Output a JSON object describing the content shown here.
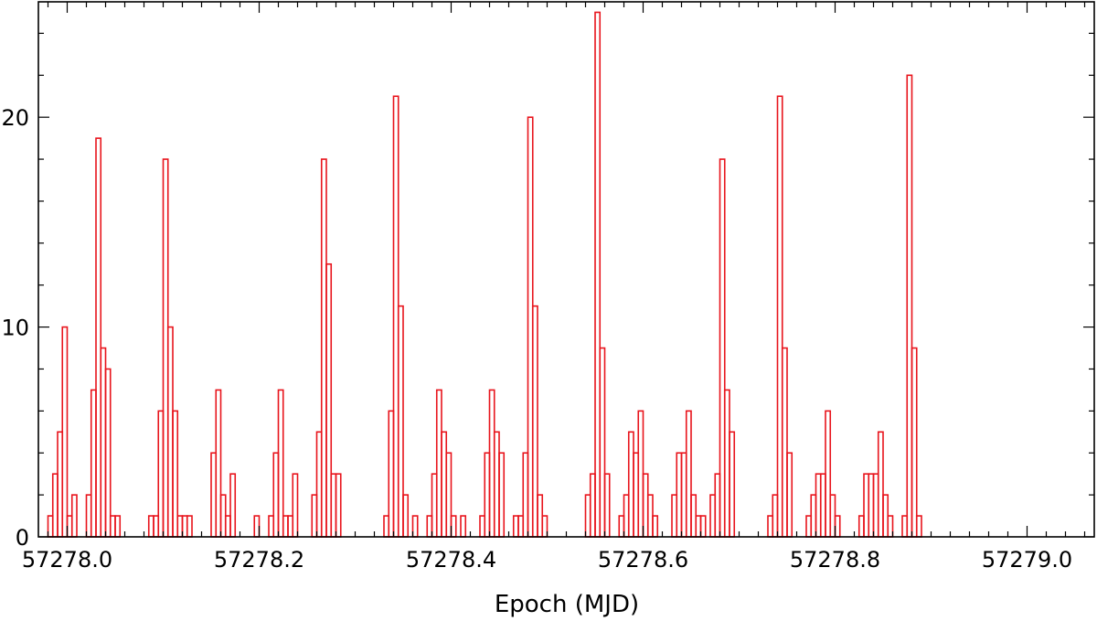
{
  "chart_data": {
    "type": "bar",
    "style": "histogram-outline",
    "title": "",
    "xlabel": "Epoch (MJD)",
    "ylabel": "",
    "xlim": [
      57277.97,
      57279.07
    ],
    "ylim": [
      0,
      25.5
    ],
    "bin_width": 0.005,
    "bar_color": "#e8141c",
    "grid": false,
    "legend": "none",
    "x_ticks": [
      {
        "value": 57278.0,
        "label": "57278.0"
      },
      {
        "value": 57278.2,
        "label": "57278.2"
      },
      {
        "value": 57278.4,
        "label": "57278.4"
      },
      {
        "value": 57278.6,
        "label": "57278.6"
      },
      {
        "value": 57278.8,
        "label": "57278.8"
      },
      {
        "value": 57279.0,
        "label": "57279.0"
      }
    ],
    "y_ticks": [
      {
        "value": 0,
        "label": "0"
      },
      {
        "value": 10,
        "label": "10"
      },
      {
        "value": 20,
        "label": "20"
      }
    ],
    "bins": [
      {
        "x": 57277.9825,
        "count": 1
      },
      {
        "x": 57277.9875,
        "count": 3
      },
      {
        "x": 57277.9925,
        "count": 5
      },
      {
        "x": 57277.9975,
        "count": 10
      },
      {
        "x": 57278.0025,
        "count": 1
      },
      {
        "x": 57278.0075,
        "count": 2
      },
      {
        "x": 57278.0225,
        "count": 2
      },
      {
        "x": 57278.0275,
        "count": 7
      },
      {
        "x": 57278.0325,
        "count": 19
      },
      {
        "x": 57278.0375,
        "count": 9
      },
      {
        "x": 57278.0425,
        "count": 8
      },
      {
        "x": 57278.0475,
        "count": 1
      },
      {
        "x": 57278.0525,
        "count": 1
      },
      {
        "x": 57278.0875,
        "count": 1
      },
      {
        "x": 57278.0925,
        "count": 1
      },
      {
        "x": 57278.0975,
        "count": 6
      },
      {
        "x": 57278.1025,
        "count": 18
      },
      {
        "x": 57278.1075,
        "count": 10
      },
      {
        "x": 57278.1125,
        "count": 6
      },
      {
        "x": 57278.1175,
        "count": 1
      },
      {
        "x": 57278.1225,
        "count": 1
      },
      {
        "x": 57278.1275,
        "count": 1
      },
      {
        "x": 57278.1525,
        "count": 4
      },
      {
        "x": 57278.1575,
        "count": 7
      },
      {
        "x": 57278.1625,
        "count": 2
      },
      {
        "x": 57278.1675,
        "count": 1
      },
      {
        "x": 57278.1725,
        "count": 3
      },
      {
        "x": 57278.1975,
        "count": 1
      },
      {
        "x": 57278.2125,
        "count": 1
      },
      {
        "x": 57278.2175,
        "count": 4
      },
      {
        "x": 57278.2225,
        "count": 7
      },
      {
        "x": 57278.2275,
        "count": 1
      },
      {
        "x": 57278.2325,
        "count": 1
      },
      {
        "x": 57278.2375,
        "count": 3
      },
      {
        "x": 57278.2575,
        "count": 2
      },
      {
        "x": 57278.2625,
        "count": 5
      },
      {
        "x": 57278.2675,
        "count": 18
      },
      {
        "x": 57278.2725,
        "count": 13
      },
      {
        "x": 57278.2775,
        "count": 3
      },
      {
        "x": 57278.2825,
        "count": 3
      },
      {
        "x": 57278.3325,
        "count": 1
      },
      {
        "x": 57278.3375,
        "count": 6
      },
      {
        "x": 57278.3425,
        "count": 21
      },
      {
        "x": 57278.3475,
        "count": 11
      },
      {
        "x": 57278.3525,
        "count": 2
      },
      {
        "x": 57278.3625,
        "count": 1
      },
      {
        "x": 57278.3775,
        "count": 1
      },
      {
        "x": 57278.3825,
        "count": 3
      },
      {
        "x": 57278.3875,
        "count": 7
      },
      {
        "x": 57278.3925,
        "count": 5
      },
      {
        "x": 57278.3975,
        "count": 4
      },
      {
        "x": 57278.4025,
        "count": 1
      },
      {
        "x": 57278.4125,
        "count": 1
      },
      {
        "x": 57278.4325,
        "count": 1
      },
      {
        "x": 57278.4375,
        "count": 4
      },
      {
        "x": 57278.4425,
        "count": 7
      },
      {
        "x": 57278.4475,
        "count": 5
      },
      {
        "x": 57278.4525,
        "count": 4
      },
      {
        "x": 57278.4675,
        "count": 1
      },
      {
        "x": 57278.4725,
        "count": 1
      },
      {
        "x": 57278.4775,
        "count": 4
      },
      {
        "x": 57278.4825,
        "count": 20
      },
      {
        "x": 57278.4875,
        "count": 11
      },
      {
        "x": 57278.4925,
        "count": 2
      },
      {
        "x": 57278.4975,
        "count": 1
      },
      {
        "x": 57278.5425,
        "count": 2
      },
      {
        "x": 57278.5475,
        "count": 3
      },
      {
        "x": 57278.5525,
        "count": 25
      },
      {
        "x": 57278.5575,
        "count": 9
      },
      {
        "x": 57278.5625,
        "count": 3
      },
      {
        "x": 57278.5775,
        "count": 1
      },
      {
        "x": 57278.5825,
        "count": 2
      },
      {
        "x": 57278.5875,
        "count": 5
      },
      {
        "x": 57278.5925,
        "count": 4
      },
      {
        "x": 57278.5975,
        "count": 6
      },
      {
        "x": 57278.6025,
        "count": 3
      },
      {
        "x": 57278.6075,
        "count": 2
      },
      {
        "x": 57278.6125,
        "count": 1
      },
      {
        "x": 57278.6325,
        "count": 2
      },
      {
        "x": 57278.6375,
        "count": 4
      },
      {
        "x": 57278.6425,
        "count": 4
      },
      {
        "x": 57278.6475,
        "count": 6
      },
      {
        "x": 57278.6525,
        "count": 2
      },
      {
        "x": 57278.6575,
        "count": 1
      },
      {
        "x": 57278.6625,
        "count": 1
      },
      {
        "x": 57278.6725,
        "count": 2
      },
      {
        "x": 57278.6775,
        "count": 3
      },
      {
        "x": 57278.6825,
        "count": 18
      },
      {
        "x": 57278.6875,
        "count": 7
      },
      {
        "x": 57278.6925,
        "count": 5
      },
      {
        "x": 57278.7325,
        "count": 1
      },
      {
        "x": 57278.7375,
        "count": 2
      },
      {
        "x": 57278.7425,
        "count": 21
      },
      {
        "x": 57278.7475,
        "count": 9
      },
      {
        "x": 57278.7525,
        "count": 4
      },
      {
        "x": 57278.7725,
        "count": 1
      },
      {
        "x": 57278.7775,
        "count": 2
      },
      {
        "x": 57278.7825,
        "count": 3
      },
      {
        "x": 57278.7875,
        "count": 3
      },
      {
        "x": 57278.7925,
        "count": 6
      },
      {
        "x": 57278.7975,
        "count": 2
      },
      {
        "x": 57278.8025,
        "count": 1
      },
      {
        "x": 57278.8275,
        "count": 1
      },
      {
        "x": 57278.8325,
        "count": 3
      },
      {
        "x": 57278.8375,
        "count": 3
      },
      {
        "x": 57278.8425,
        "count": 3
      },
      {
        "x": 57278.8475,
        "count": 5
      },
      {
        "x": 57278.8525,
        "count": 2
      },
      {
        "x": 57278.8575,
        "count": 1
      },
      {
        "x": 57278.8725,
        "count": 1
      },
      {
        "x": 57278.8775,
        "count": 22
      },
      {
        "x": 57278.8825,
        "count": 9
      },
      {
        "x": 57278.8875,
        "count": 1
      }
    ]
  }
}
